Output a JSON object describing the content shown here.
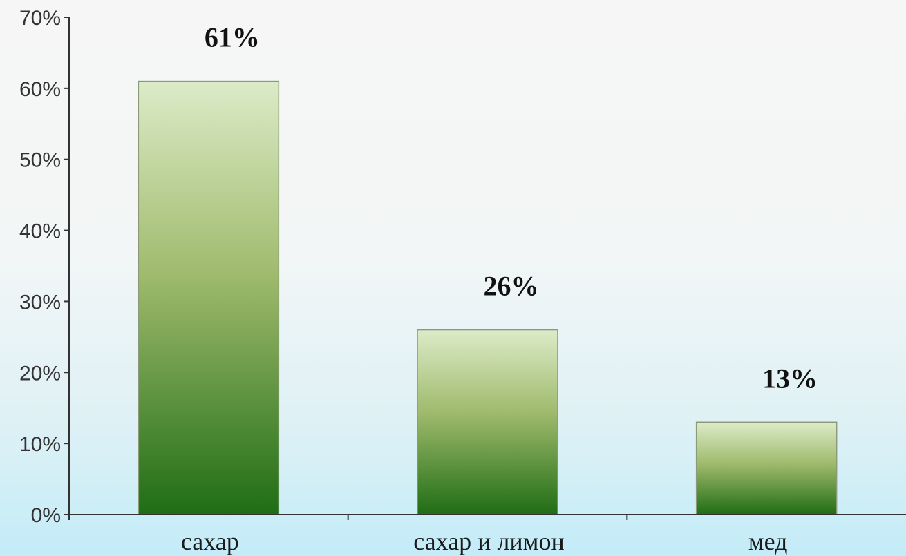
{
  "chart_data": {
    "type": "bar",
    "categories": [
      "сахар",
      "сахар и лимон",
      "мед"
    ],
    "values": [
      61,
      26,
      13
    ],
    "data_labels": [
      "61%",
      "26%",
      "13%"
    ],
    "y_tick_labels": [
      "0%",
      "10%",
      "20%",
      "30%",
      "40%",
      "50%",
      "60%",
      "70%"
    ],
    "ylim": [
      0,
      70
    ],
    "ytick_step": 10,
    "grid": false,
    "legend": "none",
    "title": "",
    "xlabel": "",
    "ylabel": "",
    "colors": {
      "bar_top": "#dcebc8",
      "bar_mid": "#9fba6c",
      "bar_bottom": "#1f6d14",
      "bar_border": "#8a9a7a",
      "axis": "#333333"
    }
  }
}
